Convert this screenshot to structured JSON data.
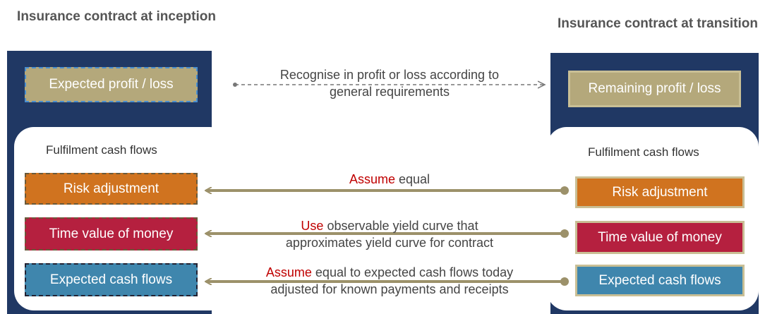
{
  "left": {
    "heading": "Insurance contract at inception",
    "profit": "Expected profit / loss",
    "group": "Fulfilment cash flows",
    "items": [
      "Risk adjustment",
      "Time value of money",
      "Expected cash flows"
    ]
  },
  "right": {
    "heading": "Insurance contract at transition",
    "profit": "Remaining profit / loss",
    "group": "Fulfilment cash flows",
    "items": [
      "Risk adjustment",
      "Time value of money",
      "Expected cash flows"
    ]
  },
  "links": {
    "profit": {
      "line1": "Recognise in profit or loss according to",
      "line2": "general requirements"
    },
    "items": [
      {
        "highlight": "Assume",
        "rest": "equal"
      },
      {
        "highlight": "Use",
        "rest": "observable yield curve that",
        "line2": "approximates yield curve for contract"
      },
      {
        "highlight": "Assume",
        "rest": "equal to expected cash flows today",
        "line2": "adjusted for known payments and receipts"
      }
    ]
  }
}
